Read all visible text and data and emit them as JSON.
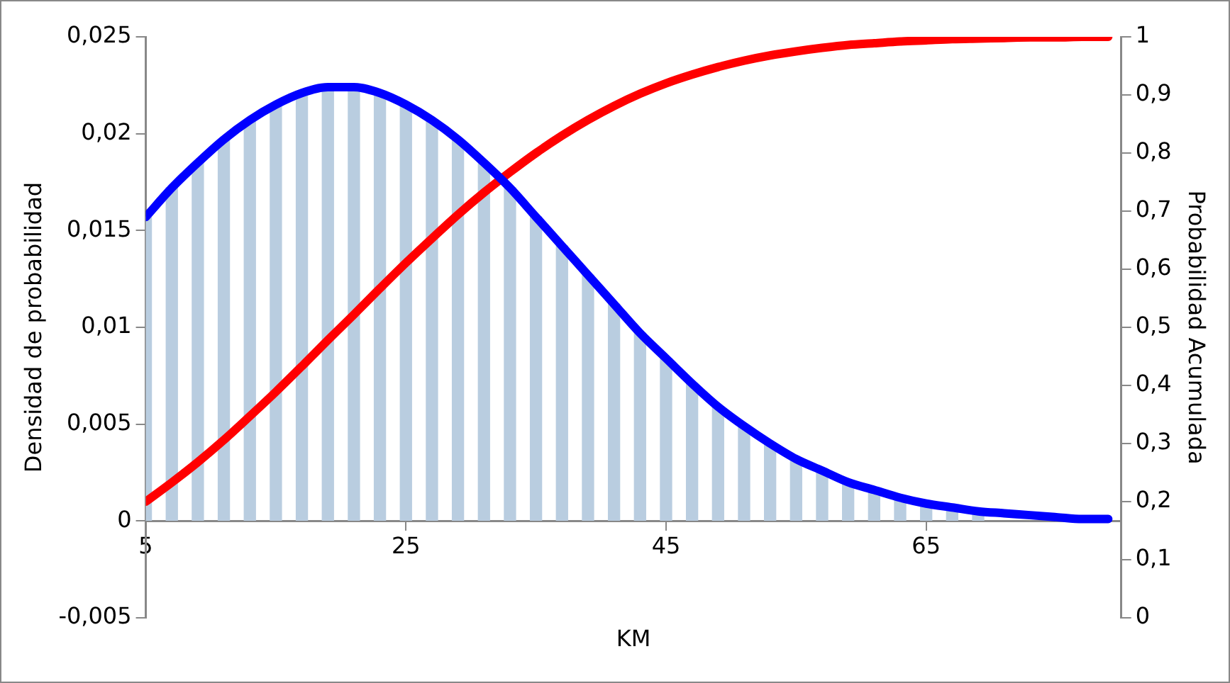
{
  "chart_data": {
    "type": "line",
    "xlabel": "KM",
    "ylabel": "Densidad de probabilidad",
    "y2label": "Probabilidad Acumulada",
    "x": [
      5,
      7,
      9,
      11,
      13,
      15,
      17,
      19,
      21,
      23,
      25,
      27,
      29,
      31,
      33,
      35,
      37,
      39,
      41,
      43,
      45,
      47,
      49,
      51,
      53,
      55,
      57,
      59,
      61,
      63,
      65,
      67,
      69,
      71,
      73,
      75,
      77,
      79
    ],
    "xlim": [
      5,
      80
    ],
    "xticks": [
      5,
      25,
      45,
      65
    ],
    "ylim": [
      -0.005,
      0.025
    ],
    "yticks": [
      {
        "value": -0.005,
        "label": "-0,005"
      },
      0,
      {
        "value": 0.005,
        "label": "0,005"
      },
      {
        "value": 0.01,
        "label": "0,01"
      },
      {
        "value": 0.015,
        "label": "0,015"
      },
      {
        "value": 0.02,
        "label": "0,02"
      },
      {
        "value": 0.025,
        "label": "0,025"
      }
    ],
    "y2lim": [
      0,
      1
    ],
    "y2ticks": [
      0,
      {
        "value": 0.1,
        "label": "0,1"
      },
      {
        "value": 0.2,
        "label": "0,2"
      },
      {
        "value": 0.3,
        "label": "0,3"
      },
      {
        "value": 0.4,
        "label": "0,4"
      },
      {
        "value": 0.5,
        "label": "0,5"
      },
      {
        "value": 0.6,
        "label": "0,6"
      },
      {
        "value": 0.7,
        "label": "0,7"
      },
      {
        "value": 0.8,
        "label": "0,8"
      },
      {
        "value": 0.9,
        "label": "0,9"
      },
      1
    ],
    "series": [
      {
        "type": "bar",
        "color": "#b9cde0",
        "values": [
          0.0157,
          0.0172,
          0.0185,
          0.0197,
          0.0207,
          0.0215,
          0.0221,
          0.0224,
          0.0224,
          0.0221,
          0.0215,
          0.0207,
          0.0197,
          0.0185,
          0.0172,
          0.0157,
          0.0142,
          0.0127,
          0.0112,
          0.0097,
          0.0084,
          0.0071,
          0.0059,
          0.0049,
          0.004,
          0.0032,
          0.0026,
          0.002,
          0.0016,
          0.0012,
          0.0009,
          0.0007,
          0.0005,
          null,
          null,
          null,
          null,
          null
        ]
      },
      {
        "color": "#0000ff",
        "values": [
          0.0157,
          0.0172,
          0.0185,
          0.0197,
          0.0207,
          0.0215,
          0.0221,
          0.0224,
          0.0224,
          0.0221,
          0.0215,
          0.0207,
          0.0197,
          0.0185,
          0.0172,
          0.0157,
          0.0142,
          0.0127,
          0.0112,
          0.0097,
          0.0084,
          0.0071,
          0.0059,
          0.0049,
          0.004,
          0.0032,
          0.0026,
          0.002,
          0.0016,
          0.0012,
          0.0009,
          0.0007,
          0.0005,
          0.0004,
          0.0003,
          0.0002,
          0.0001,
          0.0001
        ]
      },
      {
        "axis": "y2",
        "color": "#ff0000",
        "values": [
          0.2,
          0.233,
          0.268,
          0.306,
          0.347,
          0.389,
          0.433,
          0.478,
          0.522,
          0.567,
          0.611,
          0.653,
          0.694,
          0.732,
          0.767,
          0.8,
          0.83,
          0.857,
          0.881,
          0.902,
          0.92,
          0.935,
          0.948,
          0.959,
          0.968,
          0.975,
          0.981,
          0.986,
          0.989,
          0.992,
          0.994,
          0.996,
          0.997,
          0.998,
          0.999,
          0.999,
          1,
          1
        ]
      }
    ],
    "grid": false,
    "legend": false,
    "marker": "none",
    "line_style": "solid"
  }
}
